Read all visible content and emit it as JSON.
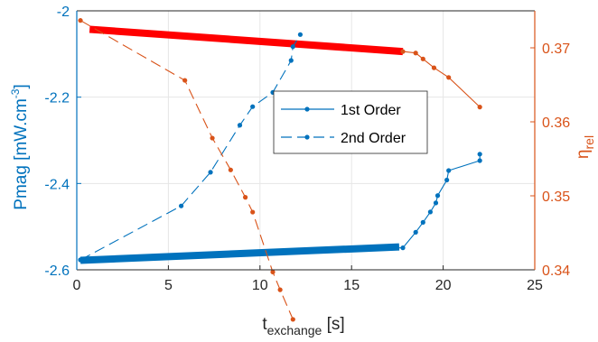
{
  "chart_data": {
    "type": "line",
    "xlabel_main": "t",
    "xlabel_sub": "exchange",
    "xlabel_unit": " [s]",
    "ylabel_left": "Pmag [mW.cm",
    "ylabel_left_sup": "-3",
    "ylabel_left_end": "]",
    "ylabel_right_main": "η",
    "ylabel_right_sub": "rel",
    "xlim": [
      0,
      25
    ],
    "xticks": [
      "0",
      "5",
      "10",
      "15",
      "20",
      "25"
    ],
    "ylim_left": [
      -2.6,
      -2.0
    ],
    "yticks_left": [
      "-2.6",
      "-2.4",
      "-2.2",
      "-2"
    ],
    "ylim_right": [
      0.34,
      0.375
    ],
    "yticks_right": [
      "0.34",
      "0.35",
      "0.36",
      "0.37"
    ],
    "grid": true,
    "legend_position": "center",
    "colors": {
      "left": "#0072BD",
      "right": "#D95319",
      "thick_red": "#FF0000"
    },
    "legend": [
      {
        "label": "1st Order",
        "style": "solid"
      },
      {
        "label": "2nd Order",
        "style": "dashed"
      }
    ],
    "series": [
      {
        "axis": "left",
        "style": "solid",
        "x": [
          0.2,
          17.8,
          18.5,
          18.9,
          19.3,
          19.6,
          19.7,
          20.2,
          20.3,
          22.0,
          22.0
        ],
        "y": [
          -2.577,
          -2.549,
          -2.513,
          -2.49,
          -2.466,
          -2.445,
          -2.428,
          -2.392,
          -2.37,
          -2.347,
          -2.332
        ]
      },
      {
        "axis": "left",
        "style": "dashed",
        "x": [
          0.2,
          5.7,
          7.3,
          8.9,
          9.6,
          10.7,
          11.7,
          11.8,
          12.2
        ],
        "y": [
          -2.577,
          -2.452,
          -2.374,
          -2.265,
          -2.222,
          -2.189,
          -2.115,
          -2.083,
          -2.055
        ]
      },
      {
        "axis": "right",
        "style": "solid",
        "x": [
          17.8,
          18.5,
          18.9,
          19.5,
          20.3,
          22.0
        ],
        "y": [
          0.3695,
          0.3693,
          0.3685,
          0.3673,
          0.366,
          0.362
        ]
      },
      {
        "axis": "right",
        "style": "dashed",
        "x": [
          0.2,
          5.9,
          7.4,
          8.4,
          9.2,
          9.6,
          10.7,
          11.1,
          11.8
        ],
        "y": [
          0.3737,
          0.3656,
          0.3578,
          0.3535,
          0.3498,
          0.3478,
          0.3397,
          0.3373,
          0.3333
        ]
      }
    ],
    "thick_lines": [
      {
        "axis": "left",
        "x": [
          0.2,
          17.6
        ],
        "y": [
          -2.578,
          -2.547
        ],
        "color": "#0072BD"
      },
      {
        "axis": "right",
        "x": [
          0.7,
          17.8
        ],
        "y": [
          0.3725,
          0.3695
        ],
        "color": "#FF0000"
      }
    ]
  }
}
